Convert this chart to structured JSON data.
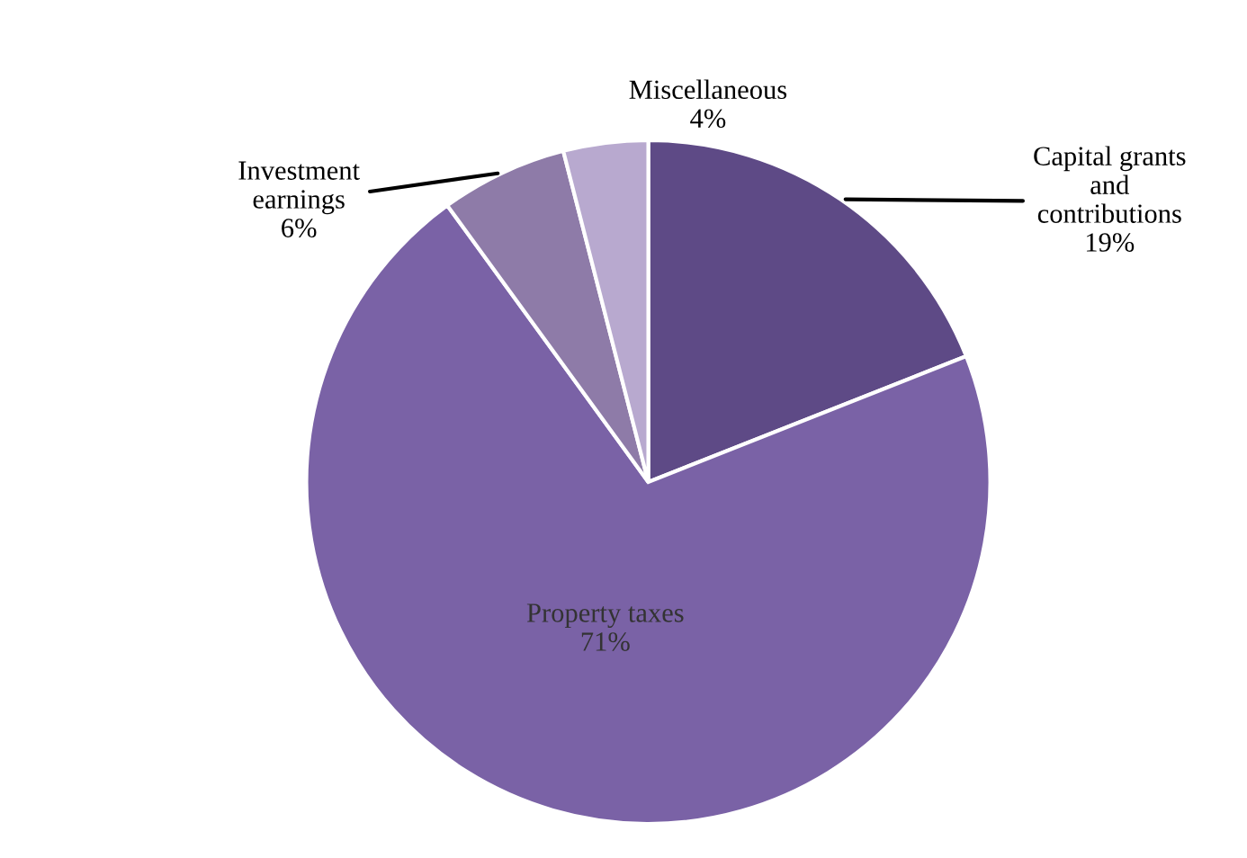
{
  "chart_data": {
    "type": "pie",
    "categories": [
      "Capital grants\nand\ncontributions",
      "Property taxes",
      "Investment\nearnings",
      "Miscellaneous"
    ],
    "values": [
      19,
      71,
      6,
      4
    ],
    "colors": [
      "#5e4a86",
      "#7a62a6",
      "#8e7ba8",
      "#b8a9cf"
    ],
    "value_labels": [
      "19%",
      "71%",
      "6%",
      "4%"
    ]
  }
}
